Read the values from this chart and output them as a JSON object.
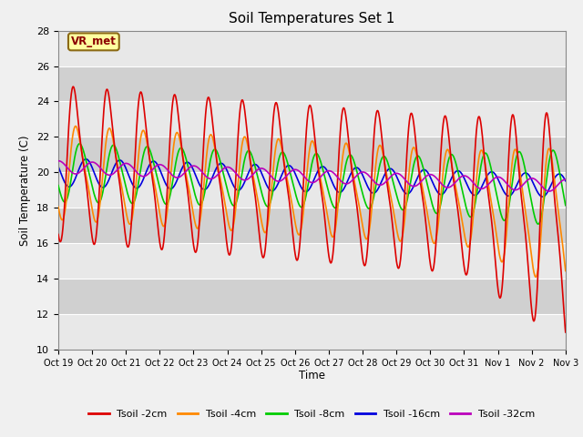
{
  "title": "Soil Temperatures Set 1",
  "xlabel": "Time",
  "ylabel": "Soil Temperature (C)",
  "ylim": [
    10,
    28
  ],
  "yticks": [
    10,
    12,
    14,
    16,
    18,
    20,
    22,
    24,
    26,
    28
  ],
  "annotation": "VR_met",
  "xtick_labels": [
    "Oct 19",
    "Oct 20",
    "Oct 21",
    "Oct 22",
    "Oct 23",
    "Oct 24",
    "Oct 25",
    "Oct 26",
    "Oct 27",
    "Oct 28",
    "Oct 29",
    "Oct 30",
    "Oct 31",
    "Nov 1",
    "Nov 2",
    "Nov 3"
  ],
  "legend_labels": [
    "Tsoil -2cm",
    "Tsoil -4cm",
    "Tsoil -8cm",
    "Tsoil -16cm",
    "Tsoil -32cm"
  ],
  "line_colors": [
    "#dd0000",
    "#ff8800",
    "#00cc00",
    "#0000dd",
    "#bb00bb"
  ],
  "n_days": 15,
  "samples_per_day": 96,
  "plot_bg_light": "#f0f0f0",
  "plot_bg_dark": "#d8d8d8",
  "fig_bg": "#e8e8e8"
}
